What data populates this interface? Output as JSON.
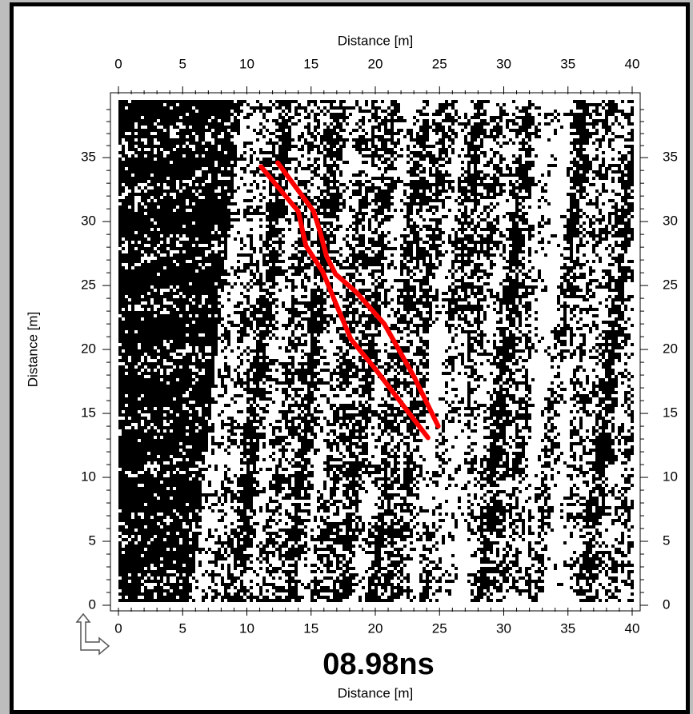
{
  "chart_data": {
    "type": "line",
    "title": "08.98ns",
    "xlabel": "Distance [m]",
    "ylabel": "Distance [m]",
    "xlim": [
      0,
      40
    ],
    "xticks": [
      0,
      5,
      10,
      15,
      20,
      25,
      30,
      35,
      40
    ],
    "ylim": [
      0,
      39.7
    ],
    "yticks": [
      0,
      5,
      10,
      15,
      20,
      25,
      30,
      35
    ],
    "series": [
      {
        "color": "#ff0000",
        "x": [
          11.1,
          14.0,
          14.6,
          15.9,
          16.8,
          18.1,
          19.9,
          24.1
        ],
        "values": [
          34.3,
          30.8,
          28.1,
          26.1,
          23.9,
          20.8,
          18.6,
          13.1
        ]
      },
      {
        "color": "#ff0000",
        "x": [
          12.4,
          14.1,
          15.2,
          15.7,
          16.2,
          16.9,
          18.5,
          20.7,
          23.0,
          24.9
        ],
        "values": [
          34.6,
          32.3,
          30.8,
          29.2,
          27.3,
          25.9,
          24.5,
          22.0,
          17.9,
          14.0
        ]
      }
    ]
  }
}
